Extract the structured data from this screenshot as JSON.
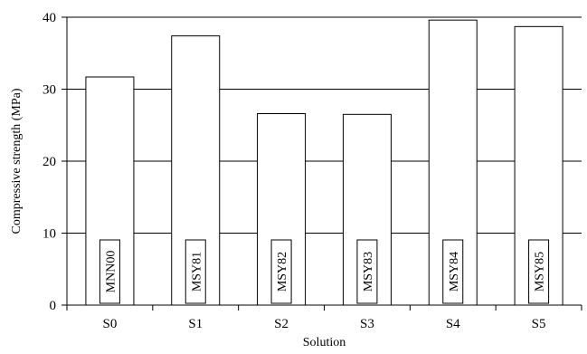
{
  "chart_data": {
    "type": "bar",
    "categories": [
      "S0",
      "S1",
      "S2",
      "S3",
      "S4",
      "S5"
    ],
    "values": [
      31.7,
      37.4,
      26.6,
      26.5,
      39.6,
      38.7
    ],
    "bar_labels": [
      "MNN00",
      "MSY81",
      "MSY82",
      "MSY83",
      "MSY84",
      "MSY85"
    ],
    "xlabel": "Solution",
    "ylabel": "Compressive strength (MPa)",
    "ylim": [
      0,
      40
    ],
    "yticks": [
      0,
      10,
      20,
      30,
      40
    ],
    "grid": "horizontal",
    "bar_fill": "#ffffff",
    "bar_stroke": "#000000"
  }
}
